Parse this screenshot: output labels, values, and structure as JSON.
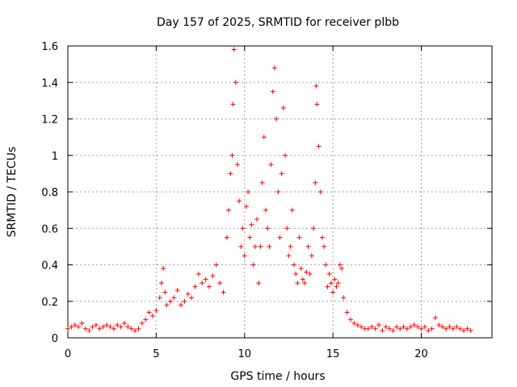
{
  "chart_data": {
    "type": "scatter",
    "title": "Day 157 of 2025, SRMTID for receiver plbb",
    "xlabel": "GPS time / hours",
    "ylabel": "SRMTID / TECUs",
    "xlim": [
      0,
      24
    ],
    "ylim": [
      0,
      1.6
    ],
    "xticks": [
      0,
      5,
      10,
      15,
      20
    ],
    "yticks": [
      0,
      0.2,
      0.4,
      0.6,
      0.8,
      1,
      1.2,
      1.4,
      1.6
    ],
    "xtick_labels": [
      "0",
      "5",
      "10",
      "15",
      "20"
    ],
    "ytick_labels": [
      "0",
      "0.2",
      "0.4",
      "0.6",
      "0.8",
      "1",
      "1.2",
      "1.4",
      "1.6"
    ],
    "grid": true,
    "marker": "+",
    "color": "#ff0000",
    "series": [
      {
        "name": "SRMTID",
        "x": [
          0.0,
          0.2,
          0.4,
          0.6,
          0.8,
          1.0,
          1.2,
          1.4,
          1.6,
          1.8,
          2.0,
          2.2,
          2.4,
          2.6,
          2.8,
          3.0,
          3.2,
          3.4,
          3.6,
          3.8,
          4.0,
          4.2,
          4.4,
          4.6,
          4.8,
          5.0,
          5.2,
          5.3,
          5.4,
          5.5,
          5.6,
          5.8,
          6.0,
          6.2,
          6.4,
          6.6,
          6.8,
          7.0,
          7.2,
          7.4,
          7.6,
          7.8,
          8.0,
          8.2,
          8.4,
          8.6,
          8.8,
          9.0,
          9.1,
          9.2,
          9.3,
          9.35,
          9.4,
          9.5,
          9.6,
          9.7,
          9.8,
          9.9,
          10.0,
          10.1,
          10.2,
          10.3,
          10.4,
          10.5,
          10.6,
          10.7,
          10.8,
          10.9,
          11.0,
          11.1,
          11.2,
          11.3,
          11.4,
          11.5,
          11.6,
          11.7,
          11.8,
          11.9,
          12.0,
          12.1,
          12.2,
          12.3,
          12.4,
          12.5,
          12.6,
          12.7,
          12.8,
          12.9,
          13.0,
          13.1,
          13.2,
          13.3,
          13.4,
          13.5,
          13.6,
          13.7,
          13.8,
          13.9,
          14.0,
          14.05,
          14.1,
          14.2,
          14.3,
          14.4,
          14.5,
          14.6,
          14.7,
          14.8,
          14.9,
          15.0,
          15.1,
          15.2,
          15.3,
          15.4,
          15.5,
          15.6,
          15.8,
          16.0,
          16.2,
          16.4,
          16.6,
          16.8,
          17.0,
          17.2,
          17.4,
          17.6,
          17.8,
          18.0,
          18.2,
          18.4,
          18.6,
          18.8,
          19.0,
          19.2,
          19.4,
          19.6,
          19.8,
          20.0,
          20.2,
          20.4,
          20.6,
          20.8,
          21.0,
          21.2,
          21.4,
          21.6,
          21.8,
          22.0,
          22.2,
          22.4,
          22.6,
          22.8
        ],
        "y": [
          0.05,
          0.06,
          0.07,
          0.06,
          0.08,
          0.05,
          0.04,
          0.06,
          0.07,
          0.05,
          0.06,
          0.07,
          0.06,
          0.05,
          0.07,
          0.06,
          0.08,
          0.06,
          0.05,
          0.04,
          0.05,
          0.08,
          0.1,
          0.14,
          0.12,
          0.15,
          0.22,
          0.3,
          0.38,
          0.25,
          0.18,
          0.2,
          0.22,
          0.26,
          0.18,
          0.2,
          0.24,
          0.22,
          0.28,
          0.35,
          0.3,
          0.32,
          0.28,
          0.34,
          0.4,
          0.3,
          0.25,
          0.55,
          0.7,
          0.9,
          1.0,
          1.28,
          1.58,
          1.4,
          0.95,
          0.75,
          0.5,
          0.6,
          0.45,
          0.72,
          0.8,
          0.55,
          0.62,
          0.4,
          0.5,
          0.65,
          0.3,
          0.5,
          0.85,
          1.1,
          0.7,
          0.6,
          0.5,
          0.95,
          1.35,
          1.48,
          1.2,
          0.8,
          0.55,
          0.9,
          1.26,
          1.0,
          0.6,
          0.45,
          0.5,
          0.7,
          0.4,
          0.35,
          0.3,
          0.55,
          0.38,
          0.32,
          0.3,
          0.36,
          0.5,
          0.35,
          0.45,
          0.6,
          0.85,
          1.38,
          1.28,
          1.05,
          0.8,
          0.55,
          0.5,
          0.4,
          0.28,
          0.35,
          0.3,
          0.25,
          0.32,
          0.28,
          0.3,
          0.4,
          0.38,
          0.22,
          0.14,
          0.1,
          0.08,
          0.07,
          0.06,
          0.05,
          0.05,
          0.06,
          0.05,
          0.07,
          0.04,
          0.06,
          0.05,
          0.04,
          0.06,
          0.05,
          0.06,
          0.05,
          0.06,
          0.07,
          0.06,
          0.05,
          0.06,
          0.04,
          0.05,
          0.11,
          0.07,
          0.06,
          0.05,
          0.06,
          0.05,
          0.06,
          0.05,
          0.04,
          0.05,
          0.04
        ]
      }
    ]
  }
}
